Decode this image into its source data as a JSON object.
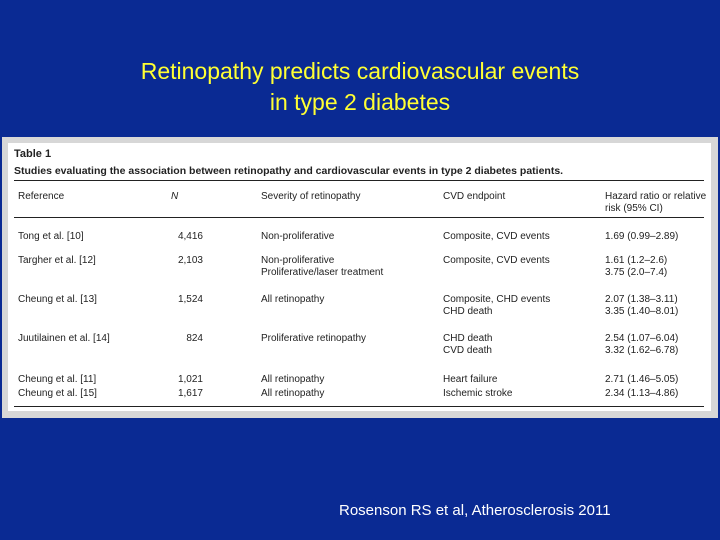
{
  "title": {
    "line1": "Retinopathy predicts cardiovascular events",
    "line2": "in type 2 diabetes"
  },
  "table": {
    "label": "Table 1",
    "caption": "Studies evaluating the association between retinopathy and cardiovascular events in type 2 diabetes patients.",
    "headers": {
      "reference": "Reference",
      "n": "N",
      "severity": "Severity of retinopathy",
      "endpoint": "CVD endpoint",
      "hr_line1": "Hazard ratio or relative",
      "hr_line2": "risk (95% CI)"
    },
    "rows": [
      {
        "reference": "Tong et al. [10]",
        "n": "4,416",
        "severity": [
          "Non-proliferative"
        ],
        "endpoint": [
          "Composite, CVD events"
        ],
        "hr": [
          "1.69 (0.99–2.89)"
        ]
      },
      {
        "reference": "Targher et al. [12]",
        "n": "2,103",
        "severity": [
          "Non-proliferative",
          "Proliferative/laser treatment"
        ],
        "endpoint": [
          "Composite, CVD events"
        ],
        "hr": [
          "1.61 (1.2–2.6)",
          "3.75 (2.0–7.4)"
        ]
      },
      {
        "reference": "Cheung et al. [13]",
        "n": "1,524",
        "severity": [
          "All retinopathy"
        ],
        "endpoint": [
          "Composite, CHD events",
          "CHD death"
        ],
        "hr": [
          "2.07 (1.38–3.11)",
          "3.35 (1.40–8.01)"
        ]
      },
      {
        "reference": "Juutilainen et al. [14]",
        "n": "824",
        "severity": [
          "Proliferative retinopathy"
        ],
        "endpoint": [
          "CHD death",
          "CVD death"
        ],
        "hr": [
          "2.54 (1.07–6.04)",
          "3.32 (1.62–6.78)"
        ]
      },
      {
        "reference": "Cheung et al. [11]",
        "n": "1,021",
        "severity": [
          "All retinopathy"
        ],
        "endpoint": [
          "Heart failure"
        ],
        "hr": [
          "2.71 (1.46–5.05)"
        ]
      },
      {
        "reference": "Cheung et al. [15]",
        "n": "1,617",
        "severity": [
          "All retinopathy"
        ],
        "endpoint": [
          "Ischemic stroke"
        ],
        "hr": [
          "2.34 (1.13–4.86)"
        ]
      }
    ]
  },
  "footer": "Rosenson RS et al, Atherosclerosis 2011",
  "colors": {
    "background": "#0a2a93",
    "title": "#ffff33",
    "footer": "#ffffff"
  }
}
